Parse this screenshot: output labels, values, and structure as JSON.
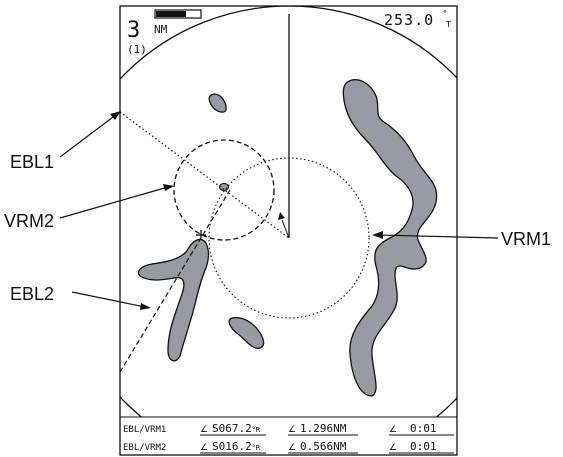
{
  "header": {
    "range_value": "3",
    "range_unit": "NM",
    "range_sub": "(1)",
    "heading_value": "253.0",
    "heading_unit": "°",
    "heading_ref": "T"
  },
  "callouts": {
    "ebl1": "EBL1",
    "vrm2": "VRM2",
    "ebl2": "EBL2",
    "vrm1": "VRM1"
  },
  "readout": {
    "rows": [
      {
        "label": "EBL/VRM1",
        "bearing_val": "S067.2",
        "bearing_unit": "°R",
        "distance": "1.296NM",
        "time": "0:01"
      },
      {
        "label": "EBL/VRM2",
        "bearing_val": "S016.2",
        "bearing_unit": "°R",
        "distance": "0.566NM",
        "time": "0:01"
      }
    ]
  },
  "colors": {
    "land": "#9a9aa5",
    "ink": "#111111",
    "background": "#ffffff"
  }
}
